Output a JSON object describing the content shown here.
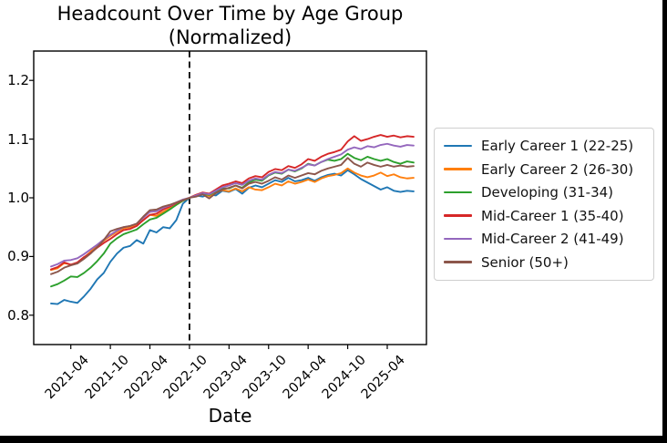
{
  "chart_data": {
    "type": "line",
    "title": "Headcount Over Time by Age Group",
    "subtitle": "(Normalized)",
    "xlabel": "Date",
    "ylabel": "",
    "ylim": [
      0.75,
      1.25
    ],
    "yticks": [
      0.8,
      0.9,
      1.0,
      1.1,
      1.2
    ],
    "ytick_labels": [
      "0.8",
      "0.9",
      "1.0",
      "1.1",
      "1.2"
    ],
    "xtick_labels": [
      "2021-04",
      "2021-10",
      "2022-04",
      "2022-10",
      "2023-04",
      "2023-10",
      "2024-04",
      "2024-10",
      "2025-04"
    ],
    "xtick_indices": [
      3,
      9,
      15,
      21,
      27,
      33,
      39,
      45,
      51
    ],
    "grid": false,
    "legend_position": "right-outside",
    "vline": {
      "x": "2022-10",
      "index": 21,
      "style": "dashed",
      "color": "#000000"
    },
    "x": [
      "2021-01",
      "2021-02",
      "2021-03",
      "2021-04",
      "2021-05",
      "2021-06",
      "2021-07",
      "2021-08",
      "2021-09",
      "2021-10",
      "2021-11",
      "2021-12",
      "2022-01",
      "2022-02",
      "2022-03",
      "2022-04",
      "2022-05",
      "2022-06",
      "2022-07",
      "2022-08",
      "2022-09",
      "2022-10",
      "2022-11",
      "2022-12",
      "2023-01",
      "2023-02",
      "2023-03",
      "2023-04",
      "2023-05",
      "2023-06",
      "2023-07",
      "2023-08",
      "2023-09",
      "2023-10",
      "2023-11",
      "2023-12",
      "2024-01",
      "2024-02",
      "2024-03",
      "2024-04",
      "2024-05",
      "2024-06",
      "2024-07",
      "2024-08",
      "2024-09",
      "2024-10",
      "2024-11",
      "2024-12",
      "2025-01",
      "2025-02",
      "2025-03",
      "2025-04",
      "2025-05",
      "2025-06",
      "2025-07",
      "2025-08"
    ],
    "series": [
      {
        "name": "Early Career 1 (22-25)",
        "color": "#1f77b4",
        "values": [
          0.82,
          0.819,
          0.826,
          0.823,
          0.821,
          0.832,
          0.845,
          0.861,
          0.872,
          0.891,
          0.905,
          0.915,
          0.918,
          0.928,
          0.922,
          0.945,
          0.941,
          0.95,
          0.948,
          0.962,
          0.99,
          1.0,
          1.004,
          1.002,
          1.006,
          1.004,
          1.012,
          1.01,
          1.015,
          1.007,
          1.017,
          1.021,
          1.018,
          1.024,
          1.03,
          1.027,
          1.034,
          1.028,
          1.03,
          1.034,
          1.029,
          1.035,
          1.039,
          1.041,
          1.038,
          1.047,
          1.04,
          1.032,
          1.026,
          1.02,
          1.014,
          1.018,
          1.012,
          1.01,
          1.012,
          1.011
        ]
      },
      {
        "name": "Early Career 2 (26-30)",
        "color": "#ff7f0e",
        "values": [
          0.877,
          0.88,
          0.889,
          0.886,
          0.889,
          0.898,
          0.908,
          0.918,
          0.927,
          0.935,
          0.942,
          0.948,
          0.95,
          0.953,
          0.962,
          0.971,
          0.969,
          0.976,
          0.982,
          0.988,
          0.995,
          1.0,
          1.005,
          1.008,
          1.003,
          1.009,
          1.013,
          1.011,
          1.016,
          1.011,
          1.018,
          1.014,
          1.013,
          1.018,
          1.024,
          1.021,
          1.028,
          1.024,
          1.027,
          1.031,
          1.027,
          1.033,
          1.037,
          1.039,
          1.042,
          1.05,
          1.043,
          1.038,
          1.035,
          1.038,
          1.043,
          1.037,
          1.04,
          1.035,
          1.033,
          1.034
        ]
      },
      {
        "name": "Developing (31-34)",
        "color": "#2ca02c",
        "values": [
          0.849,
          0.853,
          0.859,
          0.866,
          0.865,
          0.872,
          0.881,
          0.892,
          0.905,
          0.922,
          0.931,
          0.938,
          0.942,
          0.946,
          0.955,
          0.963,
          0.966,
          0.973,
          0.98,
          0.988,
          0.995,
          1.0,
          1.004,
          1.007,
          1.005,
          1.011,
          1.016,
          1.016,
          1.021,
          1.017,
          1.026,
          1.031,
          1.029,
          1.038,
          1.043,
          1.041,
          1.048,
          1.045,
          1.05,
          1.058,
          1.055,
          1.061,
          1.065,
          1.063,
          1.066,
          1.075,
          1.068,
          1.064,
          1.07,
          1.066,
          1.063,
          1.066,
          1.061,
          1.058,
          1.062,
          1.06
        ]
      },
      {
        "name": "Mid-Career 1 (35-40)",
        "color": "#d62728",
        "values": [
          0.878,
          0.882,
          0.89,
          0.886,
          0.89,
          0.899,
          0.906,
          0.915,
          0.923,
          0.93,
          0.938,
          0.945,
          0.947,
          0.952,
          0.962,
          0.971,
          0.973,
          0.98,
          0.985,
          0.991,
          0.996,
          1.0,
          1.005,
          1.009,
          1.007,
          1.014,
          1.021,
          1.024,
          1.028,
          1.025,
          1.033,
          1.037,
          1.035,
          1.044,
          1.049,
          1.047,
          1.054,
          1.051,
          1.057,
          1.066,
          1.063,
          1.07,
          1.075,
          1.078,
          1.082,
          1.096,
          1.105,
          1.097,
          1.1,
          1.104,
          1.107,
          1.104,
          1.106,
          1.103,
          1.105,
          1.104
        ]
      },
      {
        "name": "Mid-Career 2 (41-49)",
        "color": "#9467bd",
        "values": [
          0.883,
          0.887,
          0.893,
          0.894,
          0.897,
          0.904,
          0.912,
          0.92,
          0.929,
          0.937,
          0.944,
          0.95,
          0.952,
          0.956,
          0.966,
          0.976,
          0.977,
          0.983,
          0.987,
          0.992,
          0.997,
          1.0,
          1.004,
          1.008,
          1.006,
          1.012,
          1.018,
          1.021,
          1.025,
          1.022,
          1.029,
          1.033,
          1.031,
          1.039,
          1.044,
          1.042,
          1.048,
          1.046,
          1.051,
          1.057,
          1.055,
          1.061,
          1.066,
          1.07,
          1.074,
          1.082,
          1.086,
          1.083,
          1.088,
          1.086,
          1.09,
          1.092,
          1.089,
          1.087,
          1.09,
          1.089
        ]
      },
      {
        "name": "Senior (50+)",
        "color": "#8c564b",
        "values": [
          0.87,
          0.874,
          0.881,
          0.885,
          0.888,
          0.896,
          0.905,
          0.916,
          0.928,
          0.943,
          0.947,
          0.95,
          0.952,
          0.956,
          0.968,
          0.979,
          0.98,
          0.985,
          0.988,
          0.992,
          0.996,
          1.0,
          1.002,
          1.006,
          0.999,
          1.008,
          1.014,
          1.017,
          1.021,
          1.016,
          1.024,
          1.027,
          1.024,
          1.029,
          1.035,
          1.031,
          1.038,
          1.034,
          1.038,
          1.042,
          1.04,
          1.046,
          1.05,
          1.053,
          1.056,
          1.068,
          1.058,
          1.053,
          1.06,
          1.056,
          1.053,
          1.056,
          1.053,
          1.055,
          1.053,
          1.054
        ]
      }
    ]
  },
  "frame": {
    "background": "#ffffff",
    "bottom_bar_color": "#000000",
    "right_border_color": "#000000",
    "axis_color": "#000000"
  }
}
